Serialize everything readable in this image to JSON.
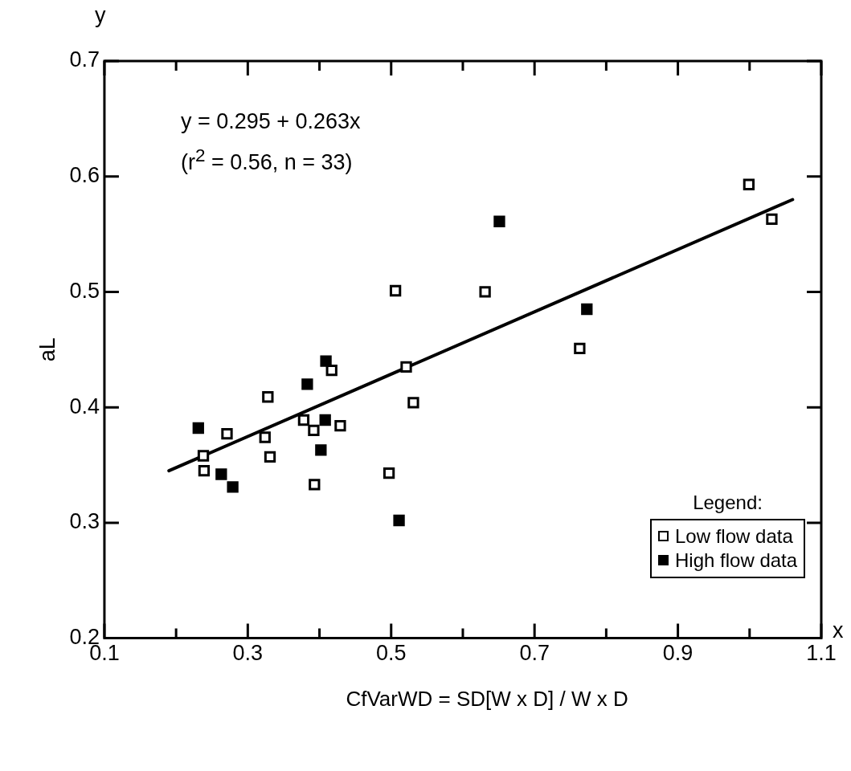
{
  "chart_data": {
    "type": "scatter",
    "xlabel": "CfVarWD = SD[W x D] / W x D",
    "ylabel": "aL",
    "legend_title": "Legend:",
    "legend": "bottom right",
    "grid": false,
    "marker": "square",
    "xlim": [
      0.1,
      1.1
    ],
    "ylim": [
      0.2,
      0.7
    ],
    "xticks": [
      0.1,
      {
        "value": 0.2,
        "label": null
      },
      0.3,
      {
        "value": 0.4,
        "label": null
      },
      0.5,
      {
        "value": 0.6,
        "label": null
      },
      0.7,
      {
        "value": 0.8,
        "label": null
      },
      0.9,
      {
        "value": 1.0,
        "label": null
      },
      1.1
    ],
    "yticks": [
      0.2,
      0.3,
      0.4,
      0.5,
      0.6,
      0.7
    ],
    "annotations": [
      "y = 0.295 + 0.263x",
      "(r$^{2}$ = 0.56, n = 33)",
      "y",
      "x"
    ],
    "series": [
      {
        "name": "Low flow data",
        "color": "#ffffff",
        "x": [
          0.417,
          0.328,
          0.521,
          0.531,
          0.271,
          0.324,
          0.378,
          0.392,
          0.429,
          0.238,
          0.331,
          0.239,
          0.497,
          0.393,
          0.506,
          0.631,
          0.763,
          0.999,
          1.031
        ],
        "values": [
          0.432,
          0.409,
          0.435,
          0.404,
          0.377,
          0.374,
          0.389,
          0.38,
          0.384,
          0.358,
          0.357,
          0.345,
          0.343,
          0.333,
          0.501,
          0.5,
          0.451,
          0.593,
          0.563
        ]
      },
      {
        "name": "High flow data",
        "color": "#000000",
        "x": [
          0.409,
          0.383,
          0.408,
          0.231,
          0.402,
          0.263,
          0.279,
          0.511,
          0.651,
          0.773
        ],
        "values": [
          0.44,
          0.42,
          0.389,
          0.382,
          0.363,
          0.342,
          0.331,
          0.302,
          0.561,
          0.485
        ]
      },
      {
        "type": "line",
        "color": "#000000",
        "line_style": "solid",
        "marker": "none",
        "x": [
          0.19,
          1.06
        ],
        "values": [
          0.345,
          0.58
        ]
      }
    ]
  }
}
